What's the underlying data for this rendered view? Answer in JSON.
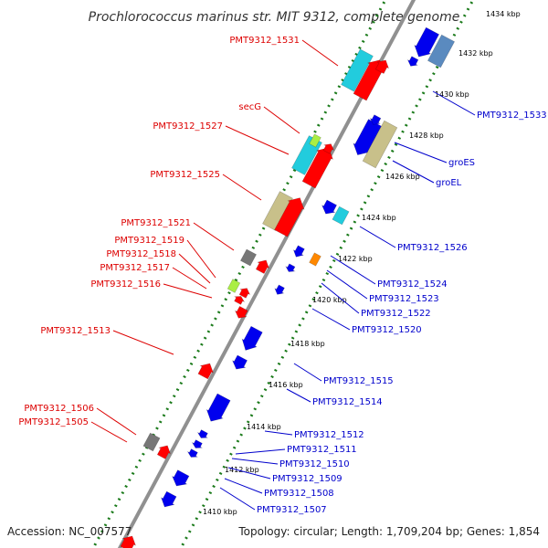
{
  "title": "Prochlorococcus marinus str. MIT 9312, complete genome",
  "footer": {
    "accession": "Accession: NC_007577",
    "summary": "Topology: circular; Length: 1,709,204 bp; Genes: 1,854"
  },
  "colors": {
    "forward_label": "#dd0000",
    "reverse_label": "#0000cc",
    "backbone": "#909090",
    "tick": "#1a7a1a",
    "forward_gene": "#ff0000",
    "reverse_gene": "#0000ee",
    "cyan_gene": "#22ccdd",
    "tan_gene": "#c8c08a",
    "steel_gene": "#5a8abf",
    "gray_gene": "#777777",
    "lime_gene": "#aaee44",
    "orange_gene": "#ff8800"
  },
  "scale": {
    "ticks": [
      "1410 kbp",
      "1412 kbp",
      "1414 kbp",
      "1416 kbp",
      "1418 kbp",
      "1420 kbp",
      "1422 kbp",
      "1424 kbp",
      "1426 kbp",
      "1428 kbp",
      "1430 kbp",
      "1432 kbp",
      "1434 kbp"
    ]
  },
  "forward_labels": [
    "PMT9312_1531",
    "secG",
    "PMT9312_1527",
    "PMT9312_1525",
    "PMT9312_1521",
    "PMT9312_1519",
    "PMT9312_1518",
    "PMT9312_1517",
    "PMT9312_1516",
    "PMT9312_1513",
    "PMT9312_1506",
    "PMT9312_1505"
  ],
  "reverse_labels": [
    "PMT9312_1533",
    "groES",
    "groEL",
    "PMT9312_1526",
    "PMT9312_1524",
    "PMT9312_1523",
    "PMT9312_1522",
    "PMT9312_1520",
    "PMT9312_1515",
    "PMT9312_1514",
    "PMT9312_1512",
    "PMT9312_1511",
    "PMT9312_1510",
    "PMT9312_1509",
    "PMT9312_1508",
    "PMT9312_1507"
  ]
}
